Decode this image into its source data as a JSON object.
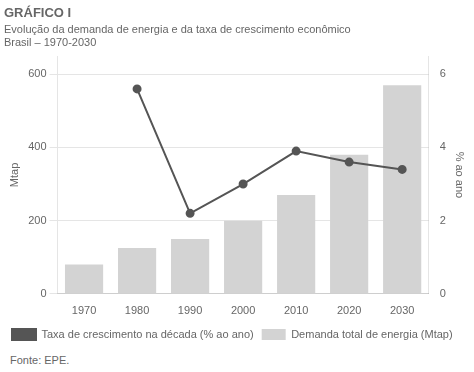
{
  "chart_data": {
    "type": "bar",
    "title": "GRÁFICO I",
    "subtitle": [
      "Evolução da demanda de energia e da taxa de crescimento econômico",
      "Brasil – 1970-2030"
    ],
    "source": "Fonte: EPE.",
    "ylabel": "Mtap",
    "y2label": "% ao ano",
    "categories": [
      "1970",
      "1980",
      "1990",
      "2000",
      "2010",
      "2020",
      "2030"
    ],
    "series": [
      {
        "name": "Demanda total de energia (Mtap)",
        "type": "bar",
        "color": "#d3d3d3",
        "values": [
          80,
          125,
          150,
          200,
          270,
          380,
          570
        ]
      },
      {
        "name": "Taxa de crescimento na década (% ao ano)",
        "type": "line",
        "color": "#555555",
        "marker": "circle",
        "axis": "y2",
        "values": [
          null,
          5.6,
          2.2,
          3.0,
          3.9,
          3.6,
          3.4
        ]
      }
    ],
    "ylim": [
      0,
      650
    ],
    "yticks": [
      0,
      200,
      400,
      600
    ],
    "y2lim": [
      0,
      6.5
    ],
    "y2ticks": [
      0,
      2,
      4,
      6
    ],
    "grid": true,
    "legend": "bottom"
  }
}
